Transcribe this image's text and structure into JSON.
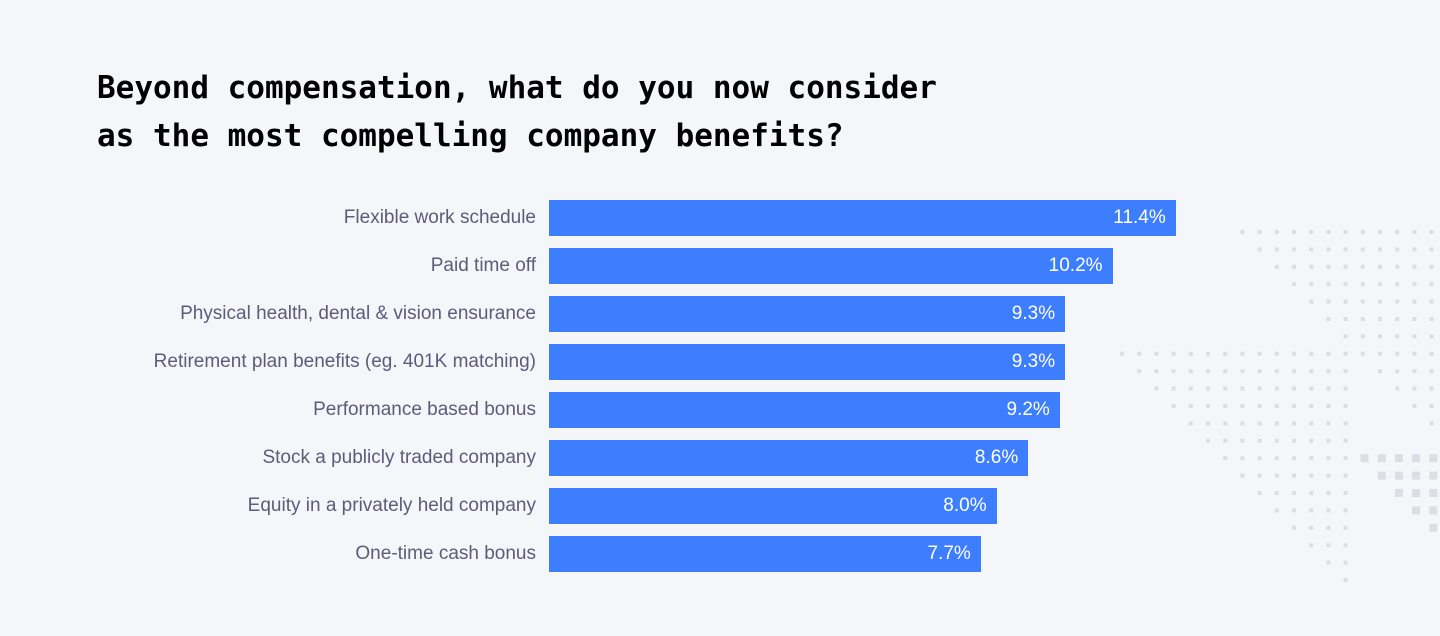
{
  "chart_data": {
    "type": "bar",
    "orientation": "horizontal",
    "title": "Beyond compensation, what do you now consider as the most compelling company benefits?",
    "title_lines": [
      "Beyond compensation, what do you now consider",
      "as the most compelling company benefits?"
    ],
    "categories": [
      "Flexible work schedule",
      "Paid time off",
      "Physical health, dental & vision ensurance",
      "Retirement plan benefits (eg. 401K matching)",
      "Performance based bonus",
      "Stock a publicly traded company",
      "Equity in a privately held company",
      "One-time cash bonus"
    ],
    "values": [
      11.4,
      10.2,
      9.3,
      9.3,
      9.2,
      8.6,
      8.0,
      7.7
    ],
    "value_labels": [
      "11.4%",
      "10.2%",
      "9.3%",
      "9.3%",
      "9.2%",
      "8.6%",
      "8.0%",
      "7.7%"
    ],
    "unit": "%",
    "grid": false,
    "bar_color": "#3d7eff",
    "background_color": "#f5f6fa"
  }
}
